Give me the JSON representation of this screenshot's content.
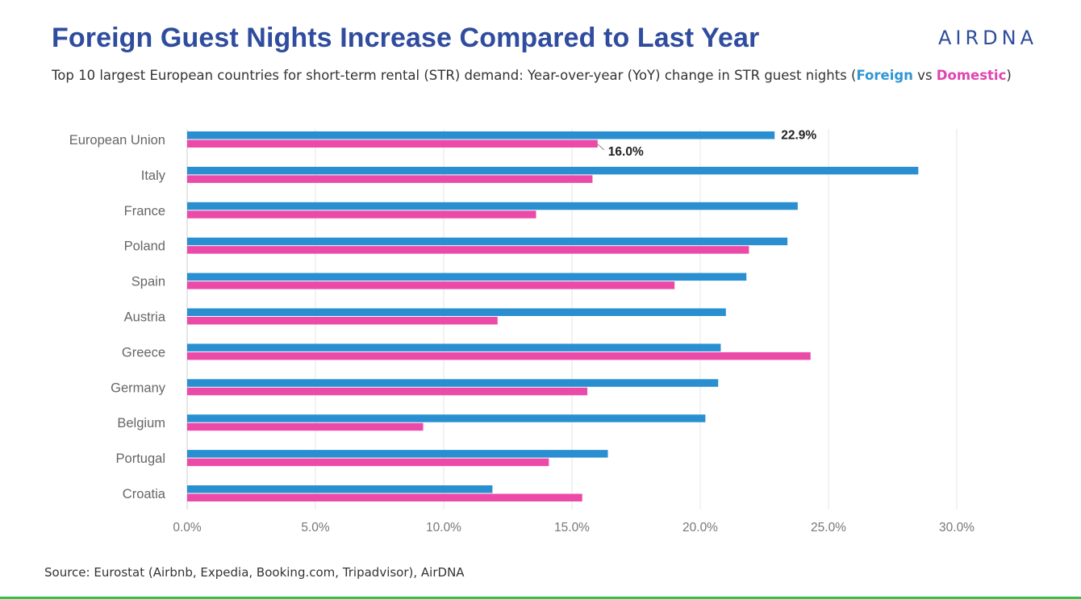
{
  "header": {
    "title": "Foreign Guest Nights Increase Compared to Last Year",
    "logo": "AIRDNA",
    "subtitle_prefix": "Top 10 largest European countries for short-term rental (STR) demand: Year-over-year (YoY) change in STR guest nights (",
    "subtitle_foreign": "Foreign",
    "subtitle_vs": " vs ",
    "subtitle_domestic": "Domestic",
    "subtitle_suffix": ")"
  },
  "footer": {
    "source": "Source: Eurostat (Airbnb, Expedia, Booking.com, Tripadvisor), AirDNA"
  },
  "chart_data": {
    "type": "bar",
    "orientation": "horizontal",
    "categories": [
      "European Union",
      "Italy",
      "France",
      "Poland",
      "Spain",
      "Austria",
      "Greece",
      "Germany",
      "Belgium",
      "Portugal",
      "Croatia"
    ],
    "series": [
      {
        "name": "Foreign",
        "color": "#2a8fd0",
        "values": [
          22.9,
          28.5,
          23.8,
          23.4,
          21.8,
          21.0,
          20.8,
          20.7,
          20.2,
          16.4,
          11.9
        ]
      },
      {
        "name": "Domestic",
        "color": "#ec4aa8",
        "values": [
          16.0,
          15.8,
          13.6,
          21.9,
          19.0,
          12.1,
          24.3,
          15.6,
          9.2,
          14.1,
          15.4
        ]
      }
    ],
    "data_labels": [
      {
        "category": "European Union",
        "series": "Foreign",
        "text": "22.9%"
      },
      {
        "category": "European Union",
        "series": "Domestic",
        "text": "16.0%"
      }
    ],
    "x_ticks": [
      "0.0%",
      "5.0%",
      "10.0%",
      "15.0%",
      "20.0%",
      "25.0%",
      "30.0%"
    ],
    "xlim": [
      0,
      30
    ],
    "grid": true,
    "title": "",
    "xlabel": "",
    "ylabel": ""
  }
}
